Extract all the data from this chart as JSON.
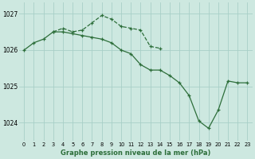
{
  "hours": [
    0,
    1,
    2,
    3,
    4,
    5,
    6,
    7,
    8,
    9,
    10,
    11,
    12,
    13,
    14,
    15,
    16,
    17,
    18,
    19,
    20,
    21,
    22,
    23
  ],
  "series1": [
    1026.0,
    1026.2,
    1026.3,
    1026.5,
    1026.5,
    1026.45,
    1026.4,
    1026.35,
    1026.3,
    1026.2,
    1026.0,
    1025.9,
    1025.6,
    1025.45,
    1025.45,
    1025.3,
    1025.1,
    1024.75,
    1024.05,
    1023.85,
    1024.35,
    1025.15,
    1025.1,
    1025.1
  ],
  "series2": [
    null,
    null,
    null,
    1026.5,
    1026.6,
    1026.5,
    1026.55,
    1026.75,
    1026.95,
    1026.85,
    1026.65,
    1026.6,
    1026.55,
    1026.1,
    1026.05,
    null,
    null,
    null,
    null,
    null,
    null,
    null,
    null,
    null
  ],
  "bg_color": "#cde8e0",
  "grid_color": "#a8cfc7",
  "line_color": "#2d6e3a",
  "title": "Graphe pression niveau de la mer (hPa)",
  "ylim": [
    1023.5,
    1027.3
  ],
  "yticks": [
    1024,
    1025,
    1026,
    1027
  ],
  "xticks": [
    0,
    1,
    2,
    3,
    4,
    5,
    6,
    7,
    8,
    9,
    10,
    11,
    12,
    13,
    14,
    15,
    16,
    17,
    18,
    19,
    20,
    21,
    22,
    23
  ]
}
